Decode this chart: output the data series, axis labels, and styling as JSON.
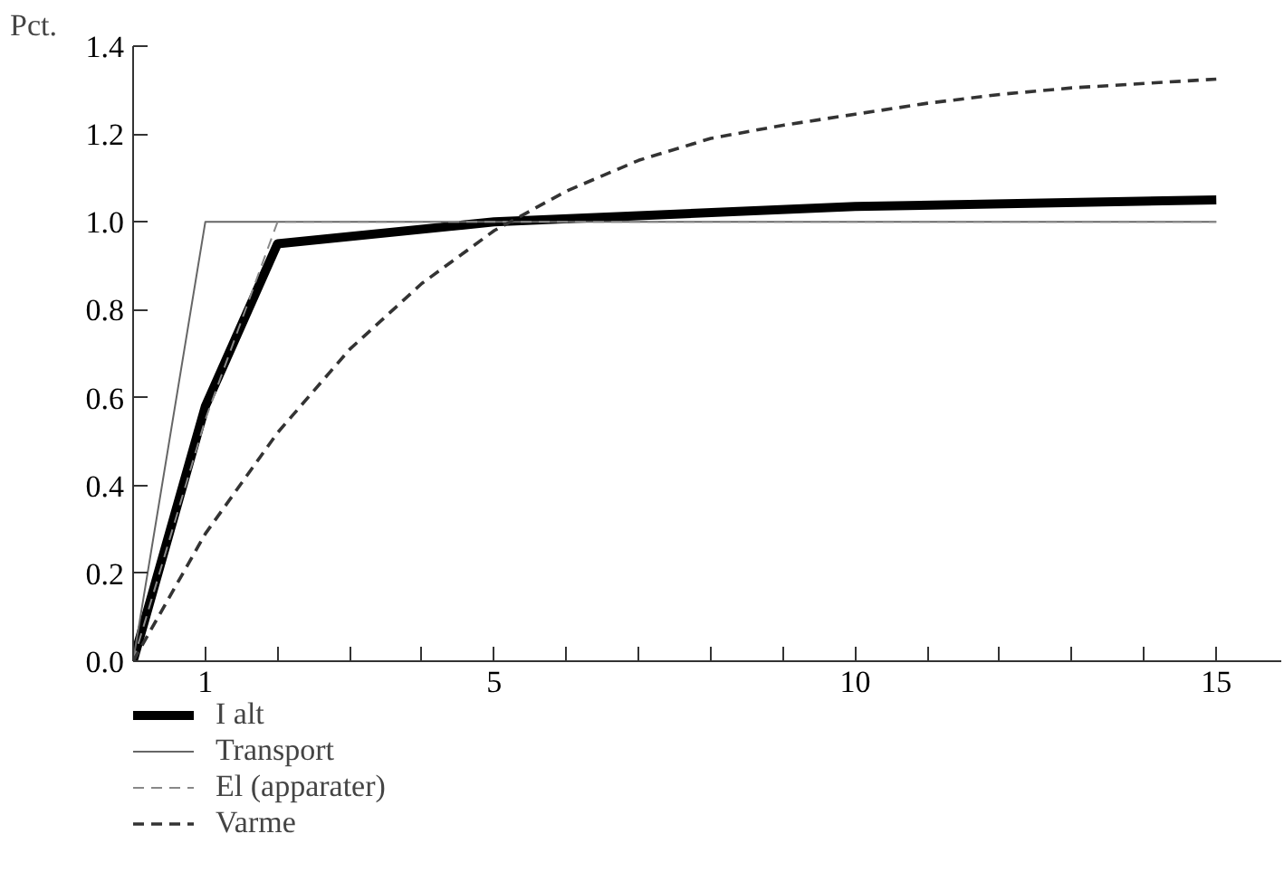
{
  "chart_data": {
    "type": "line",
    "ylabel": "Pct.",
    "x": [
      0,
      1,
      2,
      3,
      4,
      5,
      6,
      7,
      8,
      9,
      10,
      11,
      12,
      13,
      14,
      15
    ],
    "series": [
      {
        "name": "I alt",
        "color": "#000000",
        "line_style": "solid",
        "x": [
          0,
          1,
          2,
          5,
          10,
          15
        ],
        "values": [
          0,
          0.58,
          0.95,
          1.0,
          1.035,
          1.05
        ]
      },
      {
        "name": "Transport",
        "color": "#666666",
        "line_style": "solid",
        "x": [
          0,
          1,
          15
        ],
        "values": [
          0,
          1.0,
          1.0
        ]
      },
      {
        "name": "El (apparater)",
        "color": "#888888",
        "line_style": "dashed",
        "x": [
          0,
          1,
          2,
          15
        ],
        "values": [
          0,
          0.55,
          1.0,
          1.0
        ]
      },
      {
        "name": "Varme",
        "color": "#333333",
        "line_style": "dashed",
        "values": [
          0,
          0.29,
          0.52,
          0.71,
          0.86,
          0.98,
          1.07,
          1.14,
          1.19,
          1.22,
          1.245,
          1.27,
          1.29,
          1.305,
          1.315,
          1.325
        ]
      }
    ],
    "xlim": [
      0,
      15.9
    ],
    "ylim": [
      0,
      1.4
    ],
    "xticks": [
      {
        "value": 0,
        "label": null
      },
      1,
      {
        "value": 2,
        "label": null
      },
      {
        "value": 3,
        "label": null
      },
      {
        "value": 4,
        "label": null
      },
      5,
      {
        "value": 6,
        "label": null
      },
      {
        "value": 7,
        "label": null
      },
      {
        "value": 8,
        "label": null
      },
      {
        "value": 9,
        "label": null
      },
      10,
      {
        "value": 11,
        "label": null
      },
      {
        "value": 12,
        "label": null
      },
      {
        "value": 13,
        "label": null
      },
      {
        "value": 14,
        "label": null
      },
      15
    ],
    "yticks": [
      {
        "value": 0,
        "label": "0.0"
      },
      0.2,
      0.4,
      0.6,
      0.8,
      {
        "value": 1,
        "label": "1.0"
      },
      1.2,
      1.4
    ],
    "grid": false,
    "legend": "bottom left"
  }
}
